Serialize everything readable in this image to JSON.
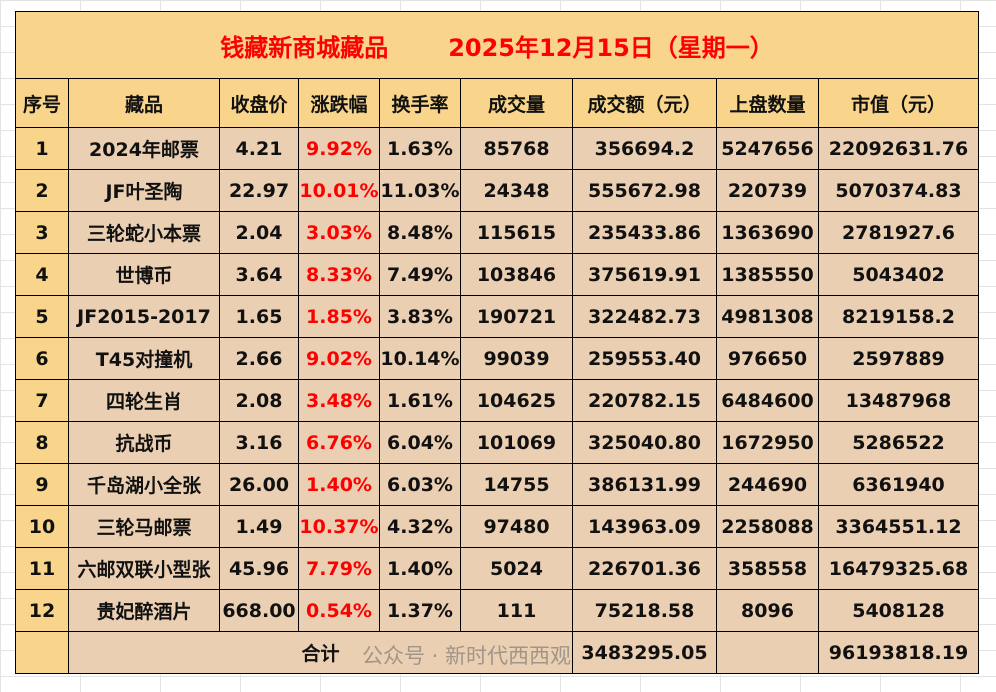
{
  "title": {
    "name": "钱藏新商城藏品",
    "date": "2025年12月15日（星期一）"
  },
  "headers": [
    "序号",
    "藏品",
    "收盘价",
    "涨跌幅",
    "换手率",
    "成交量",
    "成交额（元）",
    "上盘数量",
    "市值（元）"
  ],
  "rows": [
    [
      "1",
      "2024年邮票",
      "4.21",
      "9.92%",
      "1.63%",
      "85768",
      "356694.2",
      "5247656",
      "22092631.76"
    ],
    [
      "2",
      "JF叶圣陶",
      "22.97",
      "10.01%",
      "11.03%",
      "24348",
      "555672.98",
      "220739",
      "5070374.83"
    ],
    [
      "3",
      "三轮蛇小本票",
      "2.04",
      "3.03%",
      "8.48%",
      "115615",
      "235433.86",
      "1363690",
      "2781927.6"
    ],
    [
      "4",
      "世博币",
      "3.64",
      "8.33%",
      "7.49%",
      "103846",
      "375619.91",
      "1385550",
      "5043402"
    ],
    [
      "5",
      "JF2015-2017",
      "1.65",
      "1.85%",
      "3.83%",
      "190721",
      "322482.73",
      "4981308",
      "8219158.2"
    ],
    [
      "6",
      "T45对撞机",
      "2.66",
      "9.02%",
      "10.14%",
      "99039",
      "259553.40",
      "976650",
      "2597889"
    ],
    [
      "7",
      "四轮生肖",
      "2.08",
      "3.48%",
      "1.61%",
      "104625",
      "220782.15",
      "6484600",
      "13487968"
    ],
    [
      "8",
      "抗战币",
      "3.16",
      "6.76%",
      "6.04%",
      "101069",
      "325040.80",
      "1672950",
      "5286522"
    ],
    [
      "9",
      "千岛湖小全张",
      "26.00",
      "1.40%",
      "6.03%",
      "14755",
      "386131.99",
      "244690",
      "6361940"
    ],
    [
      "10",
      "三轮马邮票",
      "1.49",
      "10.37%",
      "4.32%",
      "97480",
      "143963.09",
      "2258088",
      "3364551.12"
    ],
    [
      "11",
      "六邮双联小型张",
      "45.96",
      "7.79%",
      "1.40%",
      "5024",
      "226701.36",
      "358558",
      "16479325.68"
    ],
    [
      "12",
      "贵妃醉酒片",
      "668.00",
      "0.54%",
      "1.37%",
      "111",
      "75218.58",
      "8096",
      "5408128"
    ]
  ],
  "total": {
    "label": "合计",
    "amount": "3483295.05",
    "market_value": "96193818.19"
  },
  "watermark": "公众号 · 新时代西西观",
  "colors": {
    "header_bg": "#f8d58a",
    "cell_bg": "#ebcfb2",
    "up": "#ff0000"
  }
}
